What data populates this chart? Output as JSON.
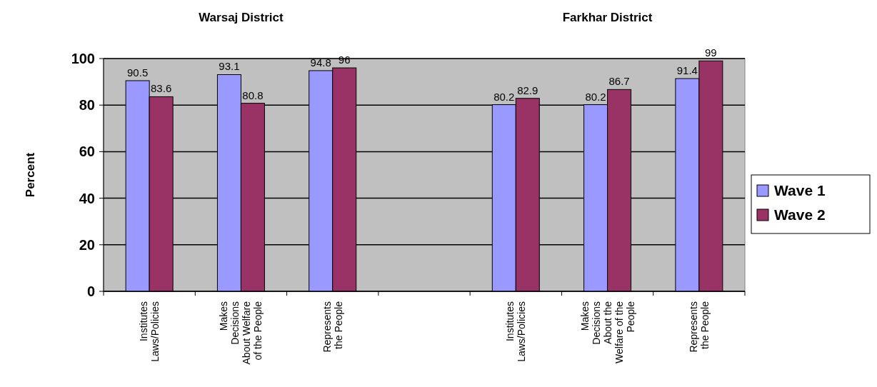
{
  "chart_data": {
    "type": "bar",
    "annotations": [
      "Warsaj District",
      "Farkhar District"
    ],
    "ylabel": "Percent",
    "categories": [
      "Institutes\nLaws/Policies",
      "Makes\nDecisions\nAbout Welfare\nof the People",
      "Represents\nthe People",
      null,
      "Institutes\nLaws/Policies",
      "Makes\nDecisions\nAbout the\nWelfare of the\nPeople",
      "Represents\nthe People"
    ],
    "series": [
      {
        "name": "Wave 1",
        "color": "#9999ff",
        "values": [
          90.5,
          93.1,
          94.8,
          null,
          80.2,
          80.2,
          91.4
        ]
      },
      {
        "name": "Wave 2",
        "color": "#993366",
        "values": [
          83.6,
          80.8,
          96,
          null,
          82.9,
          86.7,
          99
        ]
      }
    ],
    "ylim": [
      0,
      100
    ],
    "yticks": [
      0,
      20,
      40,
      60,
      80,
      100
    ],
    "grid": "y",
    "legend": "right",
    "data_labels": true
  }
}
